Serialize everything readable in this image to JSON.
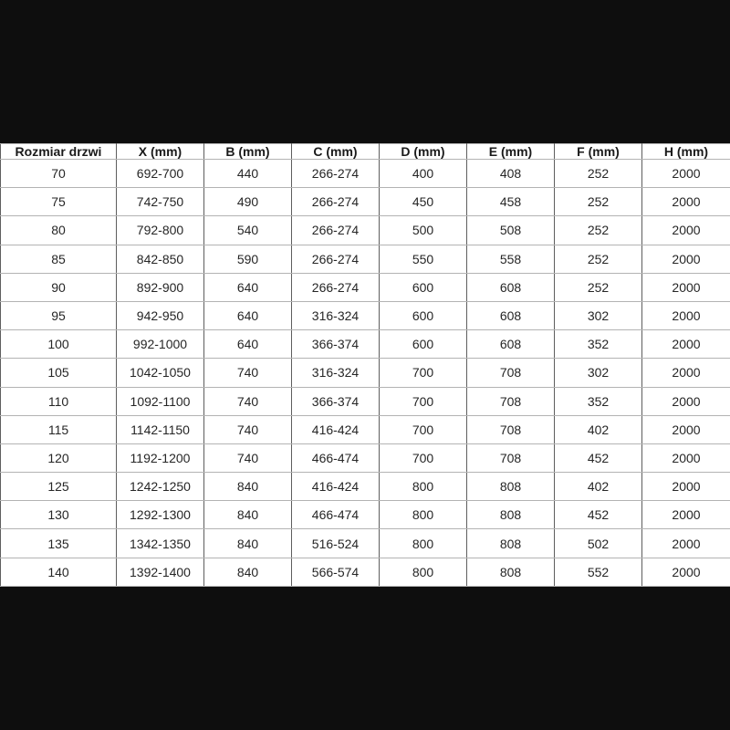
{
  "page": {
    "background_color": "#0e0e0e"
  },
  "chart_data": {
    "type": "table",
    "title": "",
    "columns": [
      "Rozmiar drzwi",
      "X (mm)",
      "B (mm)",
      "C (mm)",
      "D (mm)",
      "E (mm)",
      "F (mm)",
      "H (mm)"
    ],
    "rows": [
      [
        "70",
        "692-700",
        "440",
        "266-274",
        "400",
        "408",
        "252",
        "2000"
      ],
      [
        "75",
        "742-750",
        "490",
        "266-274",
        "450",
        "458",
        "252",
        "2000"
      ],
      [
        "80",
        "792-800",
        "540",
        "266-274",
        "500",
        "508",
        "252",
        "2000"
      ],
      [
        "85",
        "842-850",
        "590",
        "266-274",
        "550",
        "558",
        "252",
        "2000"
      ],
      [
        "90",
        "892-900",
        "640",
        "266-274",
        "600",
        "608",
        "252",
        "2000"
      ],
      [
        "95",
        "942-950",
        "640",
        "316-324",
        "600",
        "608",
        "302",
        "2000"
      ],
      [
        "100",
        "992-1000",
        "640",
        "366-374",
        "600",
        "608",
        "352",
        "2000"
      ],
      [
        "105",
        "1042-1050",
        "740",
        "316-324",
        "700",
        "708",
        "302",
        "2000"
      ],
      [
        "110",
        "1092-1100",
        "740",
        "366-374",
        "700",
        "708",
        "352",
        "2000"
      ],
      [
        "115",
        "1142-1150",
        "740",
        "416-424",
        "700",
        "708",
        "402",
        "2000"
      ],
      [
        "120",
        "1192-1200",
        "740",
        "466-474",
        "700",
        "708",
        "452",
        "2000"
      ],
      [
        "125",
        "1242-1250",
        "840",
        "416-424",
        "800",
        "808",
        "402",
        "2000"
      ],
      [
        "130",
        "1292-1300",
        "840",
        "466-474",
        "800",
        "808",
        "452",
        "2000"
      ],
      [
        "135",
        "1342-1350",
        "840",
        "516-524",
        "800",
        "808",
        "502",
        "2000"
      ],
      [
        "140",
        "1392-1400",
        "840",
        "566-574",
        "800",
        "808",
        "552",
        "2000"
      ]
    ],
    "layout": {
      "grid": true,
      "cell_background": "#ffffff",
      "vertical_grid_color": "#5e5e5e",
      "horizontal_grid_color": "#b3b3b3",
      "text_color": "#262626",
      "header_bold": true
    }
  }
}
